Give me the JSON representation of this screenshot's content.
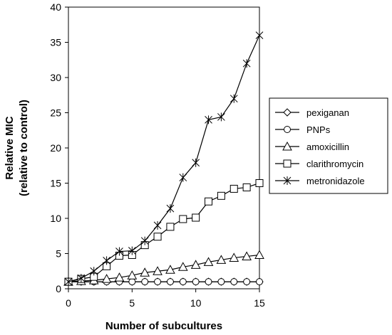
{
  "chart_data": {
    "type": "line",
    "title": "",
    "xlabel": "Number of subcultures",
    "ylabel_lines": [
      "Relative MIC",
      "(relative to control)"
    ],
    "x": [
      0,
      1,
      2,
      3,
      4,
      5,
      6,
      7,
      8,
      9,
      10,
      11,
      12,
      13,
      14,
      15
    ],
    "xlim": [
      0,
      15
    ],
    "ylim": [
      0,
      40
    ],
    "xticks": [
      0,
      5,
      10,
      15
    ],
    "yticks": [
      0,
      5,
      10,
      15,
      20,
      25,
      30,
      35,
      40
    ],
    "grid": false,
    "legend_position": "right",
    "series": [
      {
        "name": "pexiganan",
        "marker": "diamond",
        "values": [
          1,
          1,
          1,
          1,
          1,
          1,
          1,
          1,
          1,
          1,
          1,
          1,
          1,
          1,
          1,
          1
        ]
      },
      {
        "name": "PNPs",
        "marker": "circle",
        "values": [
          1,
          1,
          1,
          1,
          1,
          1,
          1,
          1,
          1,
          1,
          1,
          1,
          1,
          1,
          1,
          1
        ]
      },
      {
        "name": "amoxicillin",
        "marker": "triangle",
        "values": [
          1,
          1.1,
          1.2,
          1.4,
          1.6,
          1.9,
          2.3,
          2.5,
          2.7,
          3.1,
          3.4,
          3.8,
          4.1,
          4.4,
          4.6,
          4.8
        ]
      },
      {
        "name": "clarithromycin",
        "marker": "square",
        "values": [
          1,
          1.4,
          1.7,
          3.2,
          4.7,
          4.8,
          6.2,
          7.4,
          8.8,
          9.9,
          10.1,
          12.4,
          13.2,
          14.2,
          14.4,
          15
        ]
      },
      {
        "name": "metronidazole",
        "marker": "star",
        "values": [
          1,
          1.5,
          2.5,
          4,
          5.3,
          5.4,
          6.8,
          9,
          11.4,
          15.8,
          17.9,
          24,
          24.4,
          27,
          32,
          36
        ]
      }
    ]
  }
}
